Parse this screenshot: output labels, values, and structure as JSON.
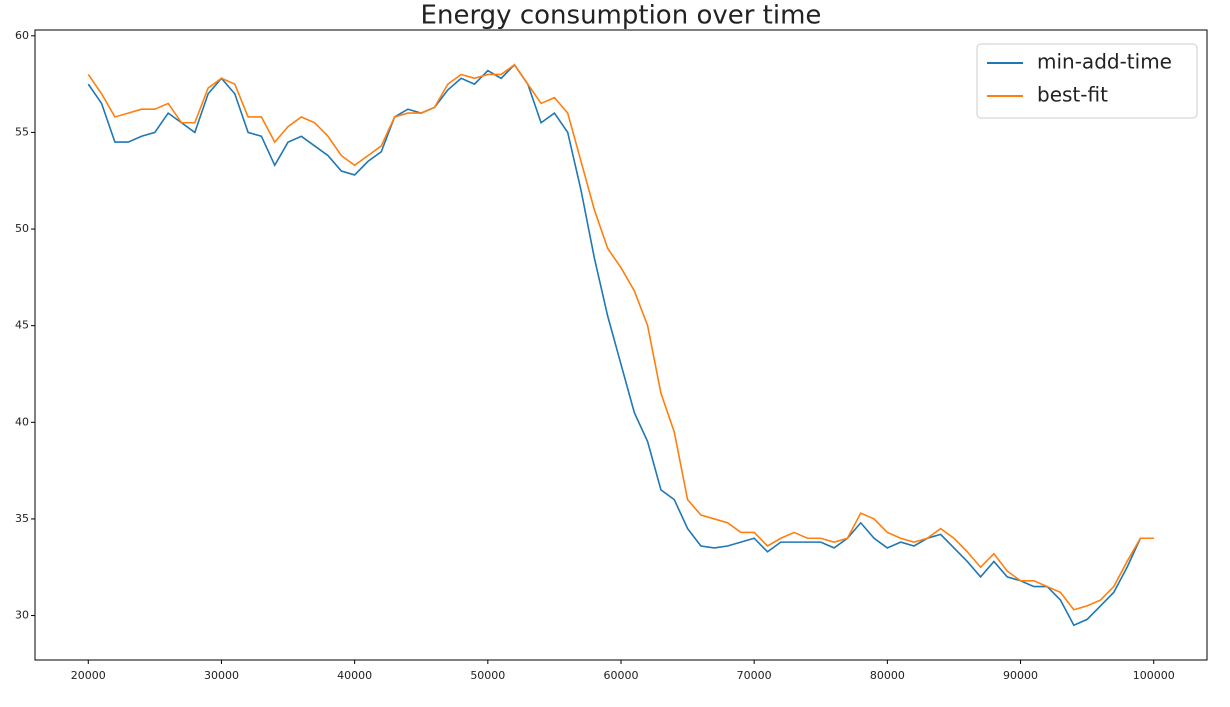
{
  "chart_data": {
    "type": "line",
    "title": "Energy consumption over time",
    "x": [
      20000,
      21000,
      22000,
      23000,
      24000,
      25000,
      26000,
      27000,
      28000,
      29000,
      30000,
      31000,
      32000,
      33000,
      34000,
      35000,
      36000,
      37000,
      38000,
      39000,
      40000,
      41000,
      42000,
      43000,
      44000,
      45000,
      46000,
      47000,
      48000,
      49000,
      50000,
      51000,
      52000,
      53000,
      54000,
      55000,
      56000,
      57000,
      58000,
      59000,
      60000,
      61000,
      62000,
      63000,
      64000,
      65000,
      66000,
      67000,
      68000,
      69000,
      70000,
      71000,
      72000,
      73000,
      74000,
      75000,
      76000,
      77000,
      78000,
      79000,
      80000,
      81000,
      82000,
      83000,
      84000,
      85000,
      86000,
      87000,
      88000,
      89000,
      90000,
      91000,
      92000,
      93000,
      94000,
      95000,
      96000,
      97000,
      98000,
      99000,
      100000
    ],
    "series": [
      {
        "name": "min-add-time",
        "color": "#1f77b4",
        "values": [
          57.5,
          56.5,
          54.5,
          54.5,
          54.8,
          55.0,
          56.0,
          55.5,
          55.0,
          57.0,
          57.8,
          57.0,
          55.0,
          54.8,
          53.3,
          54.5,
          54.8,
          54.3,
          53.8,
          53.0,
          52.8,
          53.5,
          54.0,
          55.8,
          56.2,
          56.0,
          56.3,
          57.2,
          57.8,
          57.5,
          58.2,
          57.8,
          58.5,
          57.5,
          55.5,
          56.0,
          55.0,
          52.0,
          48.5,
          45.5,
          43.0,
          40.5,
          39.0,
          36.5,
          36.0,
          34.5,
          33.6,
          33.5,
          33.6,
          33.8,
          34.0,
          33.3,
          33.8,
          33.8,
          33.8,
          33.8,
          33.5,
          34.0,
          34.8,
          34.0,
          33.5,
          33.8,
          33.6,
          34.0,
          34.2,
          33.5,
          32.8,
          32.0,
          32.8,
          32.0,
          31.8,
          31.5,
          31.5,
          30.8,
          29.5,
          29.8,
          30.5,
          31.2,
          32.5,
          34.0,
          34.0
        ]
      },
      {
        "name": "best-fit",
        "color": "#ff7f0e",
        "values": [
          58.0,
          57.0,
          55.8,
          56.0,
          56.2,
          56.2,
          56.5,
          55.5,
          55.5,
          57.3,
          57.8,
          57.5,
          55.8,
          55.8,
          54.5,
          55.3,
          55.8,
          55.5,
          54.8,
          53.8,
          53.3,
          53.8,
          54.3,
          55.8,
          56.0,
          56.0,
          56.3,
          57.5,
          58.0,
          57.8,
          58.0,
          58.0,
          58.5,
          57.5,
          56.5,
          56.8,
          56.0,
          53.5,
          51.0,
          49.0,
          48.0,
          46.8,
          45.0,
          41.5,
          39.5,
          36.0,
          35.2,
          35.0,
          34.8,
          34.3,
          34.3,
          33.6,
          34.0,
          34.3,
          34.0,
          34.0,
          33.8,
          34.0,
          35.3,
          35.0,
          34.3,
          34.0,
          33.8,
          34.0,
          34.5,
          34.0,
          33.3,
          32.5,
          33.2,
          32.3,
          31.8,
          31.8,
          31.5,
          31.2,
          30.3,
          30.5,
          30.8,
          31.5,
          32.8,
          34.0,
          34.0
        ]
      }
    ],
    "xlim": [
      16000,
      104000
    ],
    "ylim": [
      27.7,
      60.3
    ],
    "xticks": [
      20000,
      30000,
      40000,
      50000,
      60000,
      70000,
      80000,
      90000,
      100000
    ],
    "yticks": [
      30,
      35,
      40,
      45,
      50,
      55,
      60
    ],
    "legend": "upper right"
  }
}
